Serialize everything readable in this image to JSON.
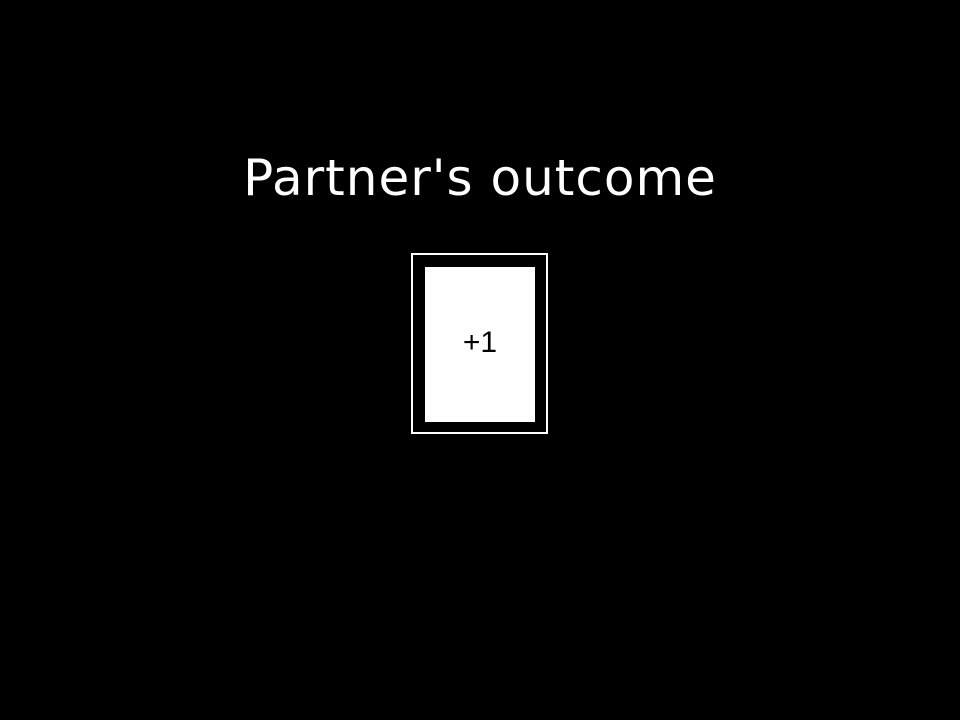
{
  "screen": {
    "title": "Partner's outcome",
    "card": {
      "value": "+1"
    }
  }
}
